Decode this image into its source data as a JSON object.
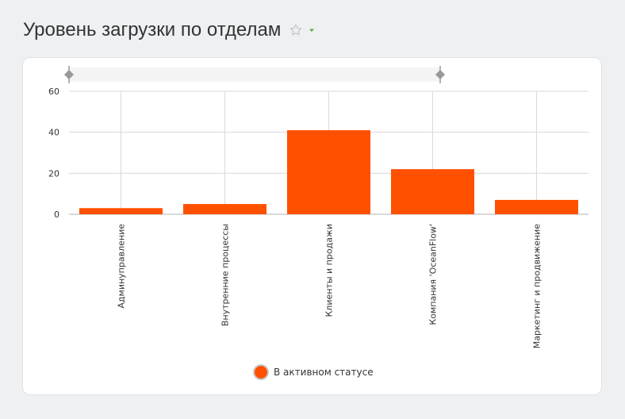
{
  "page": {
    "title": "Уровень загрузки по отделам"
  },
  "icons": {
    "favorite": "star-outline-icon",
    "menu": "caret-down-icon"
  },
  "colors": {
    "bar": "#ff5000",
    "star": "#c4c4c4",
    "caret": "#55aa33",
    "grid": "#d9d9d9",
    "slider": "#999999"
  },
  "chart_data": {
    "type": "bar",
    "categories": [
      "Админуправление",
      "Внутренние процессы",
      "Клиенты и продажи",
      "Компания 'OceanFlow'",
      "Маркетинг и продвижение"
    ],
    "series": [
      {
        "name": "В активном статусе",
        "values": [
          3,
          5,
          41,
          22,
          7
        ]
      }
    ],
    "ylim": [
      0,
      60
    ],
    "yticks": [
      0,
      20,
      40,
      60
    ],
    "xlabel": "",
    "ylabel": "",
    "grid": true,
    "legend_position": "bottom",
    "has_range_slider": true
  }
}
